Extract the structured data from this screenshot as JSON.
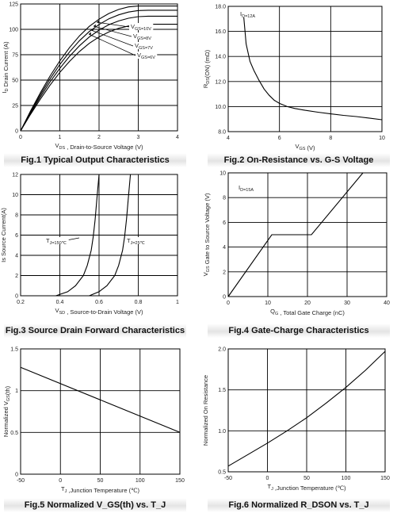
{
  "figures": [
    {
      "caption": "Fig.1 Typical Output Characteristics",
      "chart_data": {
        "type": "line",
        "xlim": [
          0,
          4
        ],
        "ylim": [
          0,
          125
        ],
        "xticks": [
          "0",
          "1",
          "2",
          "3",
          "4"
        ],
        "yticks": [
          "0",
          "25",
          "50",
          "75",
          "100",
          "125"
        ],
        "xlabel": "V_DS , Drain-to-Source Voltage (V)",
        "ylabel": "I_D  Drain Current (A)",
        "grid": true,
        "series": [
          {
            "name": "V_GS=10V",
            "x": [
              0,
              0.25,
              0.5,
              0.75,
              1,
              1.25,
              1.5,
              1.75,
              2,
              2.25,
              2.5,
              2.75,
              3,
              3.25,
              3.5,
              3.75,
              4
            ],
            "y": [
              0,
              19.3,
              37.3,
              53.9,
              68.9,
              82.2,
              93.6,
              102.9,
              110.0,
              115.6,
              119.6,
              122.1,
              123.0,
              123.0,
              123.0,
              123.0,
              123.0
            ]
          },
          {
            "name": "V_GS=8V",
            "x": [
              0,
              0.25,
              0.5,
              0.75,
              1,
              1.25,
              1.5,
              1.75,
              2,
              2.25,
              2.5,
              2.75,
              3,
              3.25,
              3.5,
              3.75,
              4
            ],
            "y": [
              0,
              18.3,
              35.3,
              51.1,
              65.4,
              77.9,
              88.8,
              97.8,
              104.8,
              110.4,
              114.3,
              117.0,
              118.5,
              118.8,
              118.8,
              118.8,
              118.8
            ]
          },
          {
            "name": "V_GS=7V",
            "x": [
              0,
              0.25,
              0.5,
              0.75,
              1,
              1.25,
              1.5,
              1.75,
              2,
              2.25,
              2.5,
              2.75,
              3,
              3.25,
              3.5,
              3.75,
              4
            ],
            "y": [
              0,
              17.2,
              33.3,
              48.2,
              61.6,
              73.5,
              83.8,
              92.4,
              99.2,
              104.6,
              108.3,
              110.9,
              112.5,
              113.0,
              113.0,
              113.0,
              113.0
            ]
          },
          {
            "name": "V_GS=6V",
            "x": [
              0,
              0.25,
              0.5,
              0.75,
              1,
              1.25,
              1.5,
              1.75,
              2,
              2.25,
              2.5,
              2.75,
              3,
              3.25,
              3.5,
              3.75,
              4
            ],
            "y": [
              0,
              16.1,
              31.1,
              45.0,
              57.6,
              68.6,
              78.2,
              86.2,
              92.5,
              97.5,
              101.0,
              103.3,
              104.5,
              105.0,
              105.0,
              105.0,
              105.0
            ]
          }
        ],
        "annotations": [
          "V_GS=10V",
          "V_GS=8V",
          "V_GS=7V",
          "V_GS=6V"
        ]
      }
    },
    {
      "caption": "Fig.2 On-Resistance vs. G-S Voltage",
      "chart_data": {
        "type": "line",
        "xlim": [
          4,
          10
        ],
        "ylim": [
          8,
          18
        ],
        "xticks": [
          "4",
          "6",
          "8",
          "10"
        ],
        "yticks": [
          "8.0",
          "10.0",
          "12.0",
          "14.0",
          "16.0",
          "18.0"
        ],
        "xlabel": "V_GS (V)",
        "ylabel": "R_DS(ON) (mΩ)",
        "grid": true,
        "annotations": [
          "I_D=12A"
        ],
        "series": [
          {
            "x": [
              4.6,
              4.7,
              4.85,
              5.0,
              5.2,
              5.4,
              5.6,
              5.8,
              6.0,
              6.3,
              6.6,
              7.0,
              7.5,
              8.0,
              8.5,
              9.0,
              9.5,
              10.0
            ],
            "y": [
              17.3,
              15.0,
              13.6,
              12.9,
              12.1,
              11.4,
              10.9,
              10.5,
              10.25,
              10.0,
              9.85,
              9.7,
              9.55,
              9.42,
              9.3,
              9.2,
              9.08,
              8.95
            ]
          }
        ]
      }
    },
    {
      "caption": "Fig.3 Source Drain Forward Characteristics",
      "chart_data": {
        "type": "line",
        "xlim": [
          0.2,
          1.0
        ],
        "ylim": [
          0,
          12
        ],
        "xticks": [
          "0.2",
          "0.4",
          "0.6",
          "0.8",
          "1"
        ],
        "yticks": [
          "0",
          "2",
          "4",
          "6",
          "8",
          "10",
          "12"
        ],
        "xlabel": "V_SD , Source-to-Drain Voltage (V)",
        "ylabel": "Is Source Current(A)",
        "grid": true,
        "annotations": [
          "T_J=150℃",
          "T_J=25℃"
        ],
        "series": [
          {
            "name": "T_J=150℃",
            "x": [
              0.38,
              0.44,
              0.48,
              0.52,
              0.54,
              0.56,
              0.57,
              0.58,
              0.59,
              0.6
            ],
            "y": [
              0,
              0.4,
              1.0,
              2.0,
              3.0,
              4.5,
              5.8,
              7.5,
              9.8,
              12.0
            ]
          },
          {
            "name": "T_J=25℃",
            "x": [
              0.55,
              0.6,
              0.64,
              0.68,
              0.7,
              0.72,
              0.73,
              0.74,
              0.75,
              0.76
            ],
            "y": [
              0,
              0.4,
              1.0,
              2.0,
              3.0,
              4.5,
              5.8,
              7.6,
              9.8,
              12.0
            ]
          }
        ]
      }
    },
    {
      "caption": "Fig.4 Gate-Charge Characteristics",
      "chart_data": {
        "type": "line",
        "xlim": [
          0,
          40
        ],
        "ylim": [
          0,
          10
        ],
        "xticks": [
          "0",
          "10",
          "20",
          "30",
          "40"
        ],
        "yticks": [
          "0",
          "2",
          "4",
          "6",
          "8",
          "10"
        ],
        "xlabel": "Q_G , Total Gate Charge (nC)",
        "ylabel": "V_GS   Gate to Source Voltage (V)",
        "grid": true,
        "annotations": [
          "I_D=15A"
        ],
        "series": [
          {
            "x": [
              0,
              11,
              21,
              34
            ],
            "y": [
              0,
              5.0,
              5.0,
              10.0
            ]
          }
        ]
      }
    },
    {
      "caption": "Fig.5 Normalized V_GS(th) vs. T_J",
      "chart_data": {
        "type": "line",
        "xlim": [
          -50,
          150
        ],
        "ylim": [
          0,
          1.5
        ],
        "xticks": [
          "-50",
          "0",
          "50",
          "100",
          "150"
        ],
        "yticks": [
          "0",
          "0.5",
          "1",
          "1.5"
        ],
        "xlabel": "T_J ,Junction Temperature (℃)",
        "ylabel": "Normalized V_GS(th)",
        "grid": true,
        "series": [
          {
            "x": [
              -50,
              150
            ],
            "y": [
              1.28,
              0.5
            ]
          }
        ]
      }
    },
    {
      "caption": "Fig.6 Normalized R_DSON vs. T_J",
      "chart_data": {
        "type": "line",
        "xlim": [
          -50,
          150
        ],
        "ylim": [
          0.5,
          2.0
        ],
        "xticks": [
          "-50",
          "0",
          "50",
          "100",
          "150"
        ],
        "yticks": [
          "0.5",
          "1.0",
          "1.5",
          "2.0"
        ],
        "xlabel": "T_J ,Junction Temperature (℃)",
        "ylabel": "Normalized On Resistance",
        "grid": true,
        "series": [
          {
            "x": [
              -50,
              -25,
              0,
              25,
              50,
              75,
              100,
              125,
              150
            ],
            "y": [
              0.57,
              0.71,
              0.85,
              1.0,
              1.16,
              1.34,
              1.53,
              1.74,
              1.97
            ]
          }
        ]
      }
    }
  ]
}
